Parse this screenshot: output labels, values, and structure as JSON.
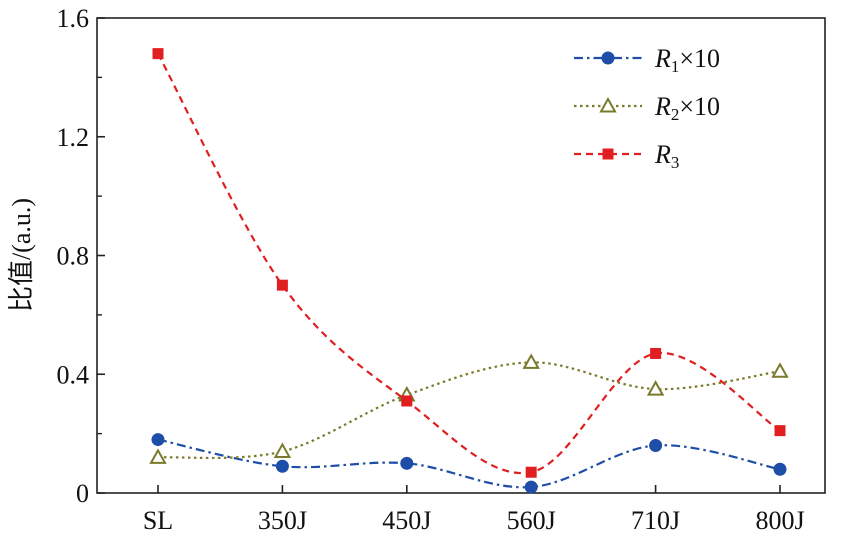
{
  "chart_data": {
    "type": "line",
    "title": "",
    "xlabel": "",
    "ylabel": "比值/(a.u.)",
    "categories": [
      "SL",
      "350J",
      "450J",
      "560J",
      "710J",
      "800J"
    ],
    "ylim": [
      0,
      1.6
    ],
    "yticks": [
      0,
      0.4,
      0.8,
      1.2,
      1.6
    ],
    "ytick_labels": [
      "0",
      "0.4",
      "0.8",
      "1.2",
      "1.6"
    ],
    "grid": false,
    "legend_position": "top-right",
    "series": [
      {
        "name": "R1×10",
        "legend": {
          "var": "R",
          "sub": "1",
          "suffix": "×10"
        },
        "values": [
          0.18,
          0.09,
          0.1,
          0.02,
          0.16,
          0.08
        ],
        "color": "#1f4ea8",
        "marker": "circle",
        "dash": "dashdot"
      },
      {
        "name": "R2×10",
        "legend": {
          "var": "R",
          "sub": "2",
          "suffix": "×10"
        },
        "values": [
          0.12,
          0.14,
          0.33,
          0.44,
          0.35,
          0.41
        ],
        "color": "#7a7a2a",
        "marker": "triangle-open",
        "dash": "dotted"
      },
      {
        "name": "R3",
        "legend": {
          "var": "R",
          "sub": "3",
          "suffix": ""
        },
        "values": [
          1.48,
          0.7,
          0.31,
          0.07,
          0.47,
          0.21
        ],
        "color": "#e02020",
        "marker": "square",
        "dash": "dashed"
      }
    ]
  }
}
